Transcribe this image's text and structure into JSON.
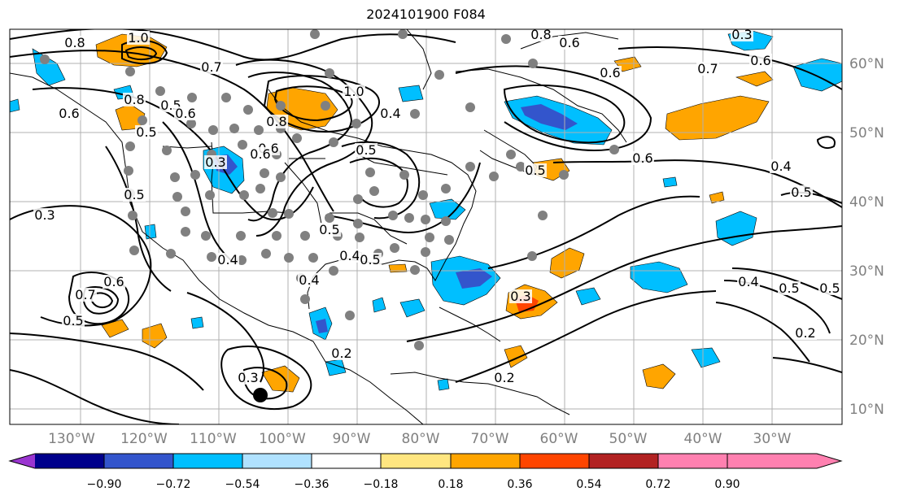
{
  "title": "2024101900 F084",
  "longitude_labels": [
    "130°W",
    "120°W",
    "110°W",
    "100°W",
    "90°W",
    "80°W",
    "70°W",
    "60°W",
    "50°W",
    "40°W",
    "30°W"
  ],
  "latitude_labels": [
    "60°N",
    "50°N",
    "40°N",
    "30°N",
    "20°N",
    "10°N"
  ],
  "colorbar": {
    "ticks": [
      "−0.90",
      "−0.72",
      "−0.54",
      "−0.36",
      "−0.18",
      "0.18",
      "0.36",
      "0.54",
      "0.72",
      "0.90"
    ],
    "colors": [
      "#9a35d0",
      "#00008b",
      "#3355cc",
      "#00bfff",
      "#b0e2ff",
      "#ffffff",
      "#ffe680",
      "#ffa500",
      "#ff4500",
      "#b22222",
      "#ff80b0"
    ]
  },
  "contour_labels": [
    "1.0",
    "0.8",
    "0.8",
    "0.5",
    "0.6",
    "0.5",
    "0.8",
    "0.5",
    "0.6",
    "1.0",
    "0.4",
    "0.5",
    "0.8",
    "0.6",
    "0.6",
    "0.3",
    "0.7",
    "0.6",
    "0.6",
    "0.5",
    "0.4",
    "0.6",
    "0.7",
    "0.3",
    "0.5",
    "0.5",
    "0.4",
    "0.7",
    "0.6",
    "0.5",
    "0.6",
    "0.4",
    "0.5",
    "0.3",
    "0.4",
    "0.5",
    "0.2",
    "0.2",
    "0.3",
    "0.2",
    "0.3",
    "0.5",
    "0.4"
  ],
  "legend_colors": {
    "coast": "#000000",
    "contour": "#000000",
    "grid": "#b0b0b0",
    "marker": "#808080"
  }
}
